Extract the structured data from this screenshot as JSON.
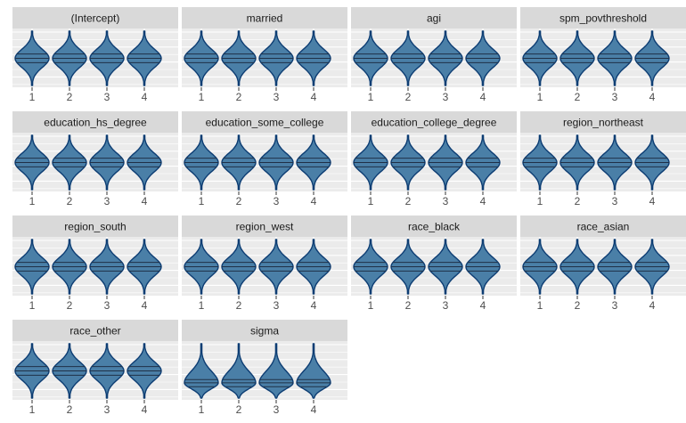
{
  "chart_data": {
    "type": "violin",
    "layout": {
      "rows": 4,
      "cols": 4
    },
    "x_categories": [
      "1",
      "2",
      "3",
      "4"
    ],
    "grid": true,
    "colors": {
      "fill": "#4a7fa7",
      "outline": "#0d3d73",
      "median_line": "#1f3047",
      "panel_bg": "#ebebeb",
      "gridline": "#ffffff",
      "strip_bg": "#d9d9d9",
      "tick_text": "#4d4d4d"
    },
    "panels": [
      {
        "title": "(Intercept)",
        "shape": "normal"
      },
      {
        "title": "married",
        "shape": "normal"
      },
      {
        "title": "agi",
        "shape": "normal"
      },
      {
        "title": "spm_povthreshold",
        "shape": "normal"
      },
      {
        "title": "education_hs_degree",
        "shape": "normal"
      },
      {
        "title": "education_some_college",
        "shape": "normal"
      },
      {
        "title": "education_college_degree",
        "shape": "normal"
      },
      {
        "title": "region_northeast",
        "shape": "normal"
      },
      {
        "title": "region_south",
        "shape": "normal"
      },
      {
        "title": "region_west",
        "shape": "normal"
      },
      {
        "title": "race_black",
        "shape": "normal"
      },
      {
        "title": "race_asian",
        "shape": "normal"
      },
      {
        "title": "race_other",
        "shape": "normal"
      },
      {
        "title": "sigma",
        "shape": "right-skewed"
      }
    ]
  }
}
